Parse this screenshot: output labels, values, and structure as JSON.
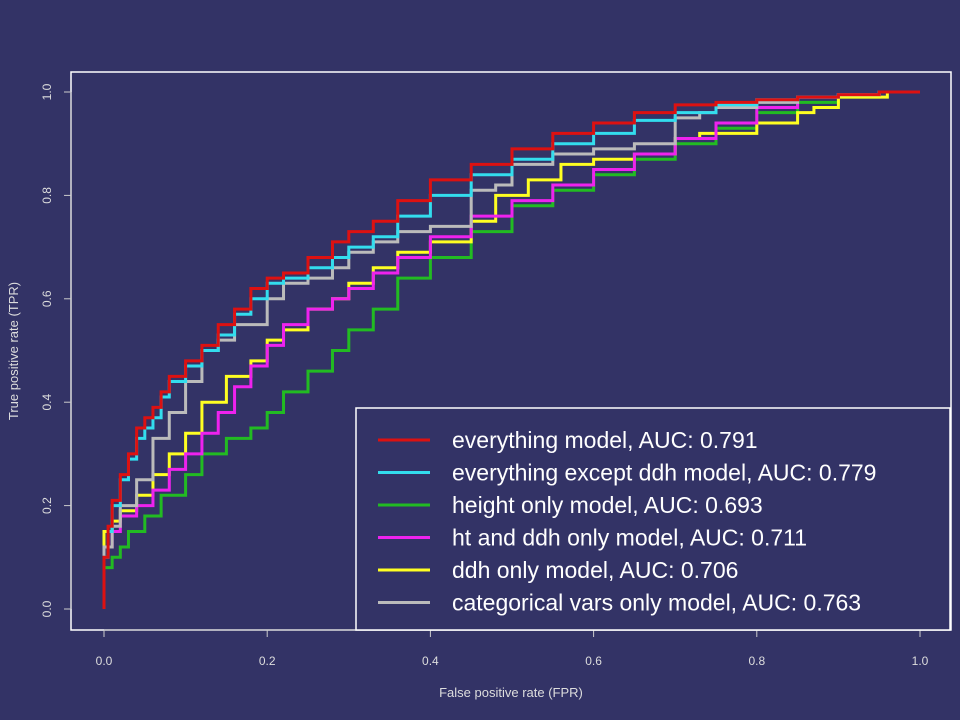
{
  "chart_data": {
    "type": "line",
    "title": "",
    "xlabel": "False positive rate (FPR)",
    "ylabel": "True positive rate (TPR)",
    "xlim": [
      0,
      1
    ],
    "ylim": [
      0,
      1
    ],
    "xticks": [
      "0.0",
      "0.2",
      "0.4",
      "0.6",
      "0.8",
      "1.0"
    ],
    "yticks": [
      "0.0",
      "0.2",
      "0.4",
      "0.6",
      "0.8",
      "1.0"
    ],
    "legend_position": "bottom-right",
    "grid": false,
    "colors": {
      "background": "#333366",
      "frame": "#ffffff",
      "axis": "#cccccc"
    },
    "series": [
      {
        "name": "everything model, AUC: 0.791",
        "color": "#dd1111",
        "x": [
          0,
          0.005,
          0.01,
          0.02,
          0.03,
          0.04,
          0.05,
          0.06,
          0.07,
          0.08,
          0.1,
          0.12,
          0.14,
          0.16,
          0.18,
          0.2,
          0.22,
          0.25,
          0.28,
          0.3,
          0.33,
          0.36,
          0.4,
          0.45,
          0.5,
          0.55,
          0.6,
          0.65,
          0.7,
          0.75,
          0.8,
          0.85,
          0.9,
          0.95,
          1.0
        ],
        "y": [
          0,
          0.1,
          0.16,
          0.21,
          0.26,
          0.3,
          0.35,
          0.37,
          0.39,
          0.42,
          0.45,
          0.48,
          0.51,
          0.55,
          0.58,
          0.62,
          0.64,
          0.65,
          0.68,
          0.71,
          0.73,
          0.75,
          0.79,
          0.83,
          0.86,
          0.89,
          0.92,
          0.94,
          0.96,
          0.975,
          0.98,
          0.985,
          0.99,
          0.995,
          1.0
        ]
      },
      {
        "name": "everything except ddh model, AUC: 0.779",
        "color": "#33ddee",
        "x": [
          0,
          0.005,
          0.01,
          0.02,
          0.03,
          0.04,
          0.05,
          0.06,
          0.07,
          0.08,
          0.1,
          0.12,
          0.14,
          0.16,
          0.18,
          0.2,
          0.22,
          0.25,
          0.28,
          0.3,
          0.33,
          0.36,
          0.4,
          0.45,
          0.5,
          0.55,
          0.6,
          0.65,
          0.7,
          0.75,
          0.8,
          0.85,
          0.9,
          0.95,
          1.0
        ],
        "y": [
          0,
          0.1,
          0.15,
          0.2,
          0.25,
          0.29,
          0.33,
          0.35,
          0.37,
          0.41,
          0.44,
          0.47,
          0.5,
          0.53,
          0.57,
          0.6,
          0.63,
          0.64,
          0.66,
          0.68,
          0.7,
          0.72,
          0.76,
          0.8,
          0.84,
          0.87,
          0.9,
          0.92,
          0.945,
          0.96,
          0.975,
          0.985,
          0.99,
          0.995,
          1.0
        ]
      },
      {
        "name": "height only model, AUC: 0.693",
        "color": "#22bb22",
        "x": [
          0,
          0.01,
          0.02,
          0.03,
          0.05,
          0.07,
          0.1,
          0.12,
          0.15,
          0.18,
          0.2,
          0.22,
          0.25,
          0.28,
          0.3,
          0.33,
          0.36,
          0.4,
          0.45,
          0.5,
          0.55,
          0.6,
          0.65,
          0.7,
          0.75,
          0.8,
          0.85,
          0.9,
          0.95,
          1.0
        ],
        "y": [
          0,
          0.08,
          0.1,
          0.12,
          0.15,
          0.18,
          0.22,
          0.26,
          0.3,
          0.33,
          0.35,
          0.38,
          0.42,
          0.46,
          0.5,
          0.54,
          0.58,
          0.64,
          0.68,
          0.73,
          0.78,
          0.81,
          0.84,
          0.87,
          0.9,
          0.93,
          0.96,
          0.98,
          0.99,
          1.0
        ]
      },
      {
        "name": "ht and ddh only model, AUC: 0.711",
        "color": "#ee22ee",
        "x": [
          0,
          0.01,
          0.02,
          0.04,
          0.06,
          0.08,
          0.1,
          0.12,
          0.14,
          0.16,
          0.18,
          0.2,
          0.22,
          0.25,
          0.28,
          0.3,
          0.33,
          0.36,
          0.4,
          0.45,
          0.5,
          0.55,
          0.6,
          0.65,
          0.7,
          0.75,
          0.8,
          0.85,
          0.9,
          0.95,
          1.0
        ],
        "y": [
          0,
          0.12,
          0.15,
          0.18,
          0.2,
          0.23,
          0.27,
          0.3,
          0.34,
          0.38,
          0.43,
          0.47,
          0.51,
          0.55,
          0.58,
          0.6,
          0.62,
          0.65,
          0.68,
          0.72,
          0.76,
          0.79,
          0.82,
          0.85,
          0.88,
          0.91,
          0.94,
          0.97,
          0.99,
          0.995,
          1.0
        ]
      },
      {
        "name": "ddh only model, AUC: 0.706",
        "color": "#ffff22",
        "x": [
          0,
          0.01,
          0.02,
          0.04,
          0.06,
          0.08,
          0.1,
          0.12,
          0.15,
          0.18,
          0.2,
          0.22,
          0.25,
          0.28,
          0.3,
          0.33,
          0.36,
          0.4,
          0.45,
          0.48,
          0.52,
          0.56,
          0.6,
          0.65,
          0.7,
          0.73,
          0.75,
          0.8,
          0.85,
          0.87,
          0.9,
          0.94,
          0.96,
          1.0
        ],
        "y": [
          0,
          0.15,
          0.17,
          0.19,
          0.22,
          0.26,
          0.3,
          0.34,
          0.4,
          0.45,
          0.48,
          0.52,
          0.54,
          0.58,
          0.6,
          0.63,
          0.66,
          0.69,
          0.71,
          0.75,
          0.8,
          0.83,
          0.86,
          0.87,
          0.88,
          0.91,
          0.92,
          0.92,
          0.94,
          0.96,
          0.97,
          0.99,
          0.99,
          1.0
        ]
      },
      {
        "name": "categorical vars only model, AUC: 0.763",
        "color": "#bbbbbb",
        "x": [
          0,
          0.01,
          0.02,
          0.04,
          0.06,
          0.08,
          0.1,
          0.12,
          0.14,
          0.16,
          0.2,
          0.22,
          0.25,
          0.28,
          0.3,
          0.33,
          0.36,
          0.4,
          0.45,
          0.48,
          0.5,
          0.55,
          0.6,
          0.65,
          0.7,
          0.73,
          0.75,
          0.8,
          0.85,
          0.9,
          0.95,
          1.0
        ],
        "y": [
          0,
          0.12,
          0.16,
          0.2,
          0.25,
          0.33,
          0.38,
          0.44,
          0.5,
          0.52,
          0.55,
          0.6,
          0.63,
          0.64,
          0.66,
          0.69,
          0.71,
          0.73,
          0.74,
          0.81,
          0.82,
          0.86,
          0.88,
          0.89,
          0.9,
          0.95,
          0.96,
          0.97,
          0.98,
          0.99,
          0.995,
          1.0
        ]
      }
    ]
  }
}
